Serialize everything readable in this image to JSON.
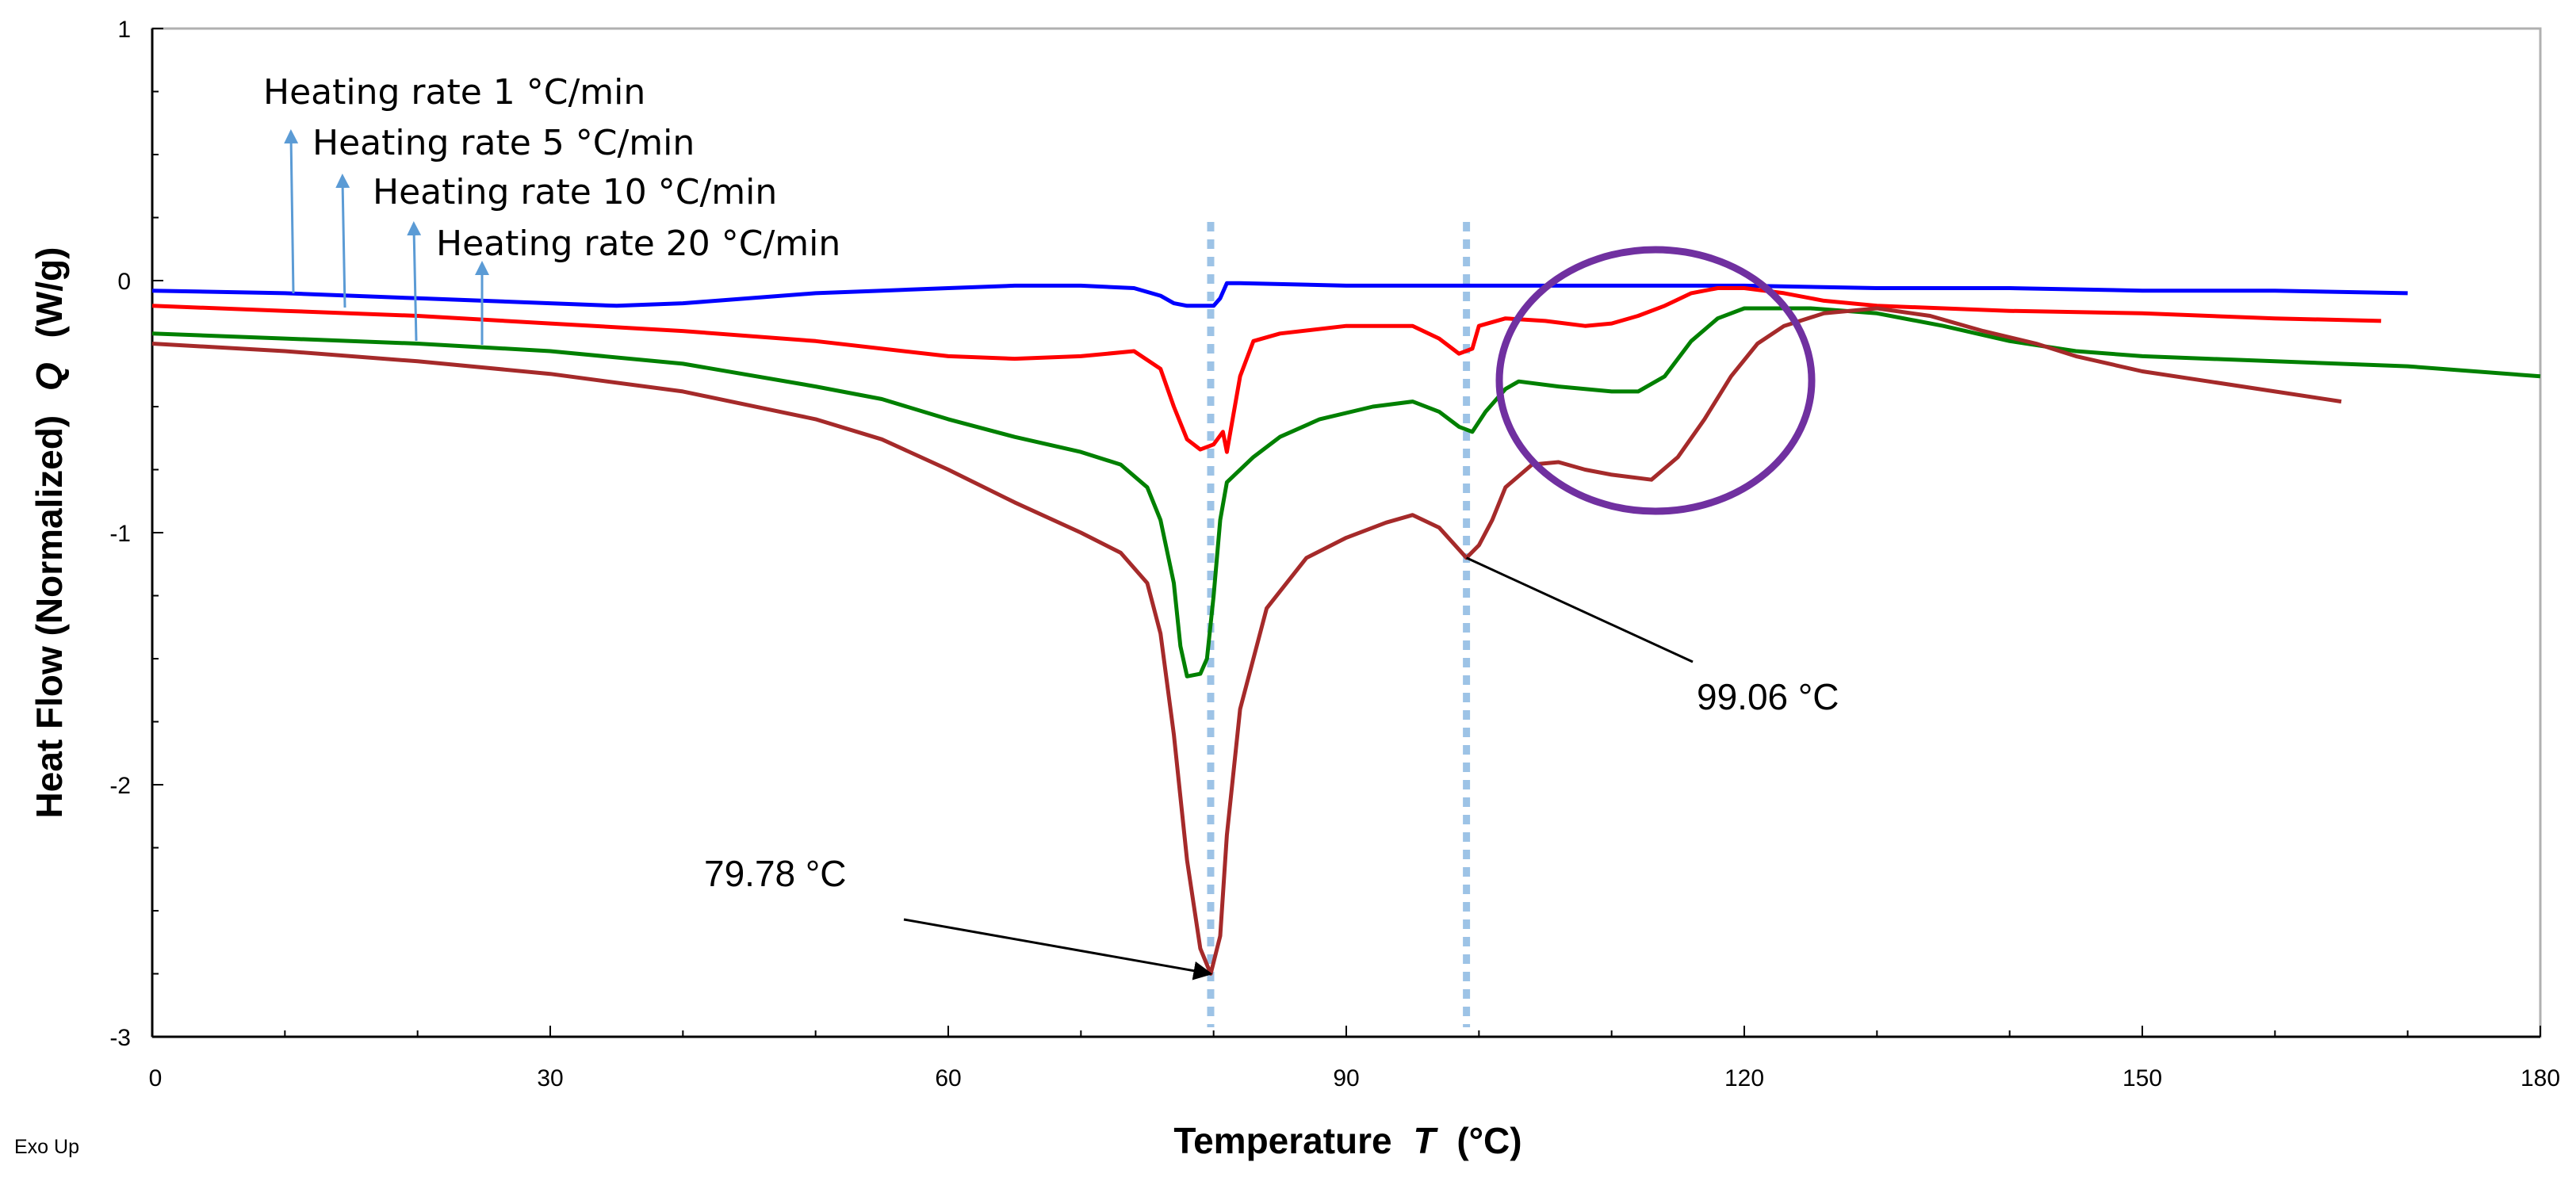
{
  "chart_data": {
    "type": "line",
    "xlabel": "Temperature",
    "xlabel_symbol": "T",
    "xlabel_unit": "(°C)",
    "ylabel": "Heat Flow (Normalized)",
    "ylabel_symbol": "Q",
    "ylabel_unit": "(W/g)",
    "xlim": [
      0,
      180
    ],
    "ylim": [
      -3,
      1
    ],
    "xticks": [
      "0",
      "30",
      "60",
      "90",
      "120",
      "150",
      "180"
    ],
    "yticks": [
      "1",
      "0",
      "-1",
      "-2",
      "-3"
    ],
    "footnote": "Exo Up",
    "series": [
      {
        "name": "Heating rate 1 °C/min",
        "color": "#0000ff",
        "points": [
          [
            0,
            -0.04
          ],
          [
            10,
            -0.05
          ],
          [
            20,
            -0.07
          ],
          [
            30,
            -0.09
          ],
          [
            35,
            -0.1
          ],
          [
            40,
            -0.09
          ],
          [
            45,
            -0.07
          ],
          [
            50,
            -0.05
          ],
          [
            55,
            -0.04
          ],
          [
            60,
            -0.03
          ],
          [
            65,
            -0.02
          ],
          [
            70,
            -0.02
          ],
          [
            74,
            -0.03
          ],
          [
            76,
            -0.06
          ],
          [
            77,
            -0.09
          ],
          [
            78,
            -0.1
          ],
          [
            79,
            -0.1
          ],
          [
            80,
            -0.1
          ],
          [
            80.5,
            -0.07
          ],
          [
            81,
            -0.01
          ],
          [
            82,
            -0.01
          ],
          [
            90,
            -0.02
          ],
          [
            100,
            -0.02
          ],
          [
            110,
            -0.02
          ],
          [
            120,
            -0.02
          ],
          [
            130,
            -0.03
          ],
          [
            140,
            -0.03
          ],
          [
            150,
            -0.04
          ],
          [
            160,
            -0.04
          ],
          [
            170,
            -0.05
          ]
        ]
      },
      {
        "name": "Heating rate 5 °C/min",
        "color": "#ff0000",
        "points": [
          [
            0,
            -0.1
          ],
          [
            10,
            -0.12
          ],
          [
            20,
            -0.14
          ],
          [
            30,
            -0.17
          ],
          [
            40,
            -0.2
          ],
          [
            50,
            -0.24
          ],
          [
            60,
            -0.3
          ],
          [
            65,
            -0.31
          ],
          [
            70,
            -0.3
          ],
          [
            74,
            -0.28
          ],
          [
            76,
            -0.35
          ],
          [
            77,
            -0.5
          ],
          [
            78,
            -0.63
          ],
          [
            79,
            -0.67
          ],
          [
            80,
            -0.65
          ],
          [
            80.7,
            -0.6
          ],
          [
            81,
            -0.68
          ],
          [
            82,
            -0.38
          ],
          [
            83,
            -0.24
          ],
          [
            85,
            -0.21
          ],
          [
            90,
            -0.18
          ],
          [
            95,
            -0.18
          ],
          [
            97,
            -0.23
          ],
          [
            98.5,
            -0.29
          ],
          [
            99.5,
            -0.27
          ],
          [
            100,
            -0.18
          ],
          [
            102,
            -0.15
          ],
          [
            105,
            -0.16
          ],
          [
            108,
            -0.18
          ],
          [
            110,
            -0.17
          ],
          [
            112,
            -0.14
          ],
          [
            114,
            -0.1
          ],
          [
            116,
            -0.05
          ],
          [
            118,
            -0.03
          ],
          [
            120,
            -0.03
          ],
          [
            123,
            -0.05
          ],
          [
            126,
            -0.08
          ],
          [
            130,
            -0.1
          ],
          [
            140,
            -0.12
          ],
          [
            150,
            -0.13
          ],
          [
            160,
            -0.15
          ],
          [
            168,
            -0.16
          ]
        ]
      },
      {
        "name": "Heating rate 10 °C/min",
        "color": "#008000",
        "points": [
          [
            0,
            -0.21
          ],
          [
            10,
            -0.23
          ],
          [
            20,
            -0.25
          ],
          [
            30,
            -0.28
          ],
          [
            40,
            -0.33
          ],
          [
            50,
            -0.42
          ],
          [
            55,
            -0.47
          ],
          [
            60,
            -0.55
          ],
          [
            65,
            -0.62
          ],
          [
            70,
            -0.68
          ],
          [
            73,
            -0.73
          ],
          [
            75,
            -0.82
          ],
          [
            76,
            -0.95
          ],
          [
            77,
            -1.2
          ],
          [
            77.5,
            -1.45
          ],
          [
            78,
            -1.57
          ],
          [
            79,
            -1.56
          ],
          [
            79.5,
            -1.5
          ],
          [
            80,
            -1.25
          ],
          [
            80.5,
            -0.95
          ],
          [
            81,
            -0.8
          ],
          [
            83,
            -0.7
          ],
          [
            85,
            -0.62
          ],
          [
            88,
            -0.55
          ],
          [
            92,
            -0.5
          ],
          [
            95,
            -0.48
          ],
          [
            97,
            -0.52
          ],
          [
            98.5,
            -0.58
          ],
          [
            99.5,
            -0.6
          ],
          [
            100.5,
            -0.52
          ],
          [
            102,
            -0.43
          ],
          [
            103,
            -0.4
          ],
          [
            106,
            -0.42
          ],
          [
            110,
            -0.44
          ],
          [
            112,
            -0.44
          ],
          [
            114,
            -0.38
          ],
          [
            116,
            -0.24
          ],
          [
            118,
            -0.15
          ],
          [
            120,
            -0.11
          ],
          [
            125,
            -0.11
          ],
          [
            130,
            -0.13
          ],
          [
            135,
            -0.18
          ],
          [
            140,
            -0.24
          ],
          [
            145,
            -0.28
          ],
          [
            150,
            -0.3
          ],
          [
            160,
            -0.32
          ],
          [
            170,
            -0.34
          ],
          [
            180,
            -0.38
          ]
        ]
      },
      {
        "name": "Heating rate 20 °C/min",
        "color": "#a52a2a",
        "points": [
          [
            0,
            -0.25
          ],
          [
            10,
            -0.28
          ],
          [
            20,
            -0.32
          ],
          [
            30,
            -0.37
          ],
          [
            40,
            -0.44
          ],
          [
            50,
            -0.55
          ],
          [
            55,
            -0.63
          ],
          [
            60,
            -0.75
          ],
          [
            65,
            -0.88
          ],
          [
            70,
            -1.0
          ],
          [
            73,
            -1.08
          ],
          [
            75,
            -1.2
          ],
          [
            76,
            -1.4
          ],
          [
            77,
            -1.8
          ],
          [
            78,
            -2.3
          ],
          [
            79,
            -2.65
          ],
          [
            79.78,
            -2.75
          ],
          [
            80.5,
            -2.6
          ],
          [
            81,
            -2.2
          ],
          [
            82,
            -1.7
          ],
          [
            84,
            -1.3
          ],
          [
            87,
            -1.1
          ],
          [
            90,
            -1.02
          ],
          [
            93,
            -0.96
          ],
          [
            95,
            -0.93
          ],
          [
            97,
            -0.98
          ],
          [
            99.06,
            -1.1
          ],
          [
            100,
            -1.05
          ],
          [
            101,
            -0.95
          ],
          [
            102,
            -0.82
          ],
          [
            104,
            -0.73
          ],
          [
            106,
            -0.72
          ],
          [
            108,
            -0.75
          ],
          [
            110,
            -0.77
          ],
          [
            113,
            -0.79
          ],
          [
            115,
            -0.7
          ],
          [
            117,
            -0.55
          ],
          [
            119,
            -0.38
          ],
          [
            121,
            -0.25
          ],
          [
            123,
            -0.18
          ],
          [
            126,
            -0.13
          ],
          [
            130,
            -0.11
          ],
          [
            134,
            -0.14
          ],
          [
            138,
            -0.2
          ],
          [
            142,
            -0.25
          ],
          [
            145,
            -0.3
          ],
          [
            150,
            -0.36
          ],
          [
            155,
            -0.4
          ],
          [
            160,
            -0.44
          ],
          [
            165,
            -0.48
          ]
        ]
      }
    ],
    "annotations": [
      {
        "text": "79.78 °C",
        "x": 79.78,
        "y": -2.75
      },
      {
        "text": "99.06 °C",
        "x": 99.06,
        "y": -1.1
      }
    ],
    "markers": [
      79.78,
      99.06
    ]
  }
}
